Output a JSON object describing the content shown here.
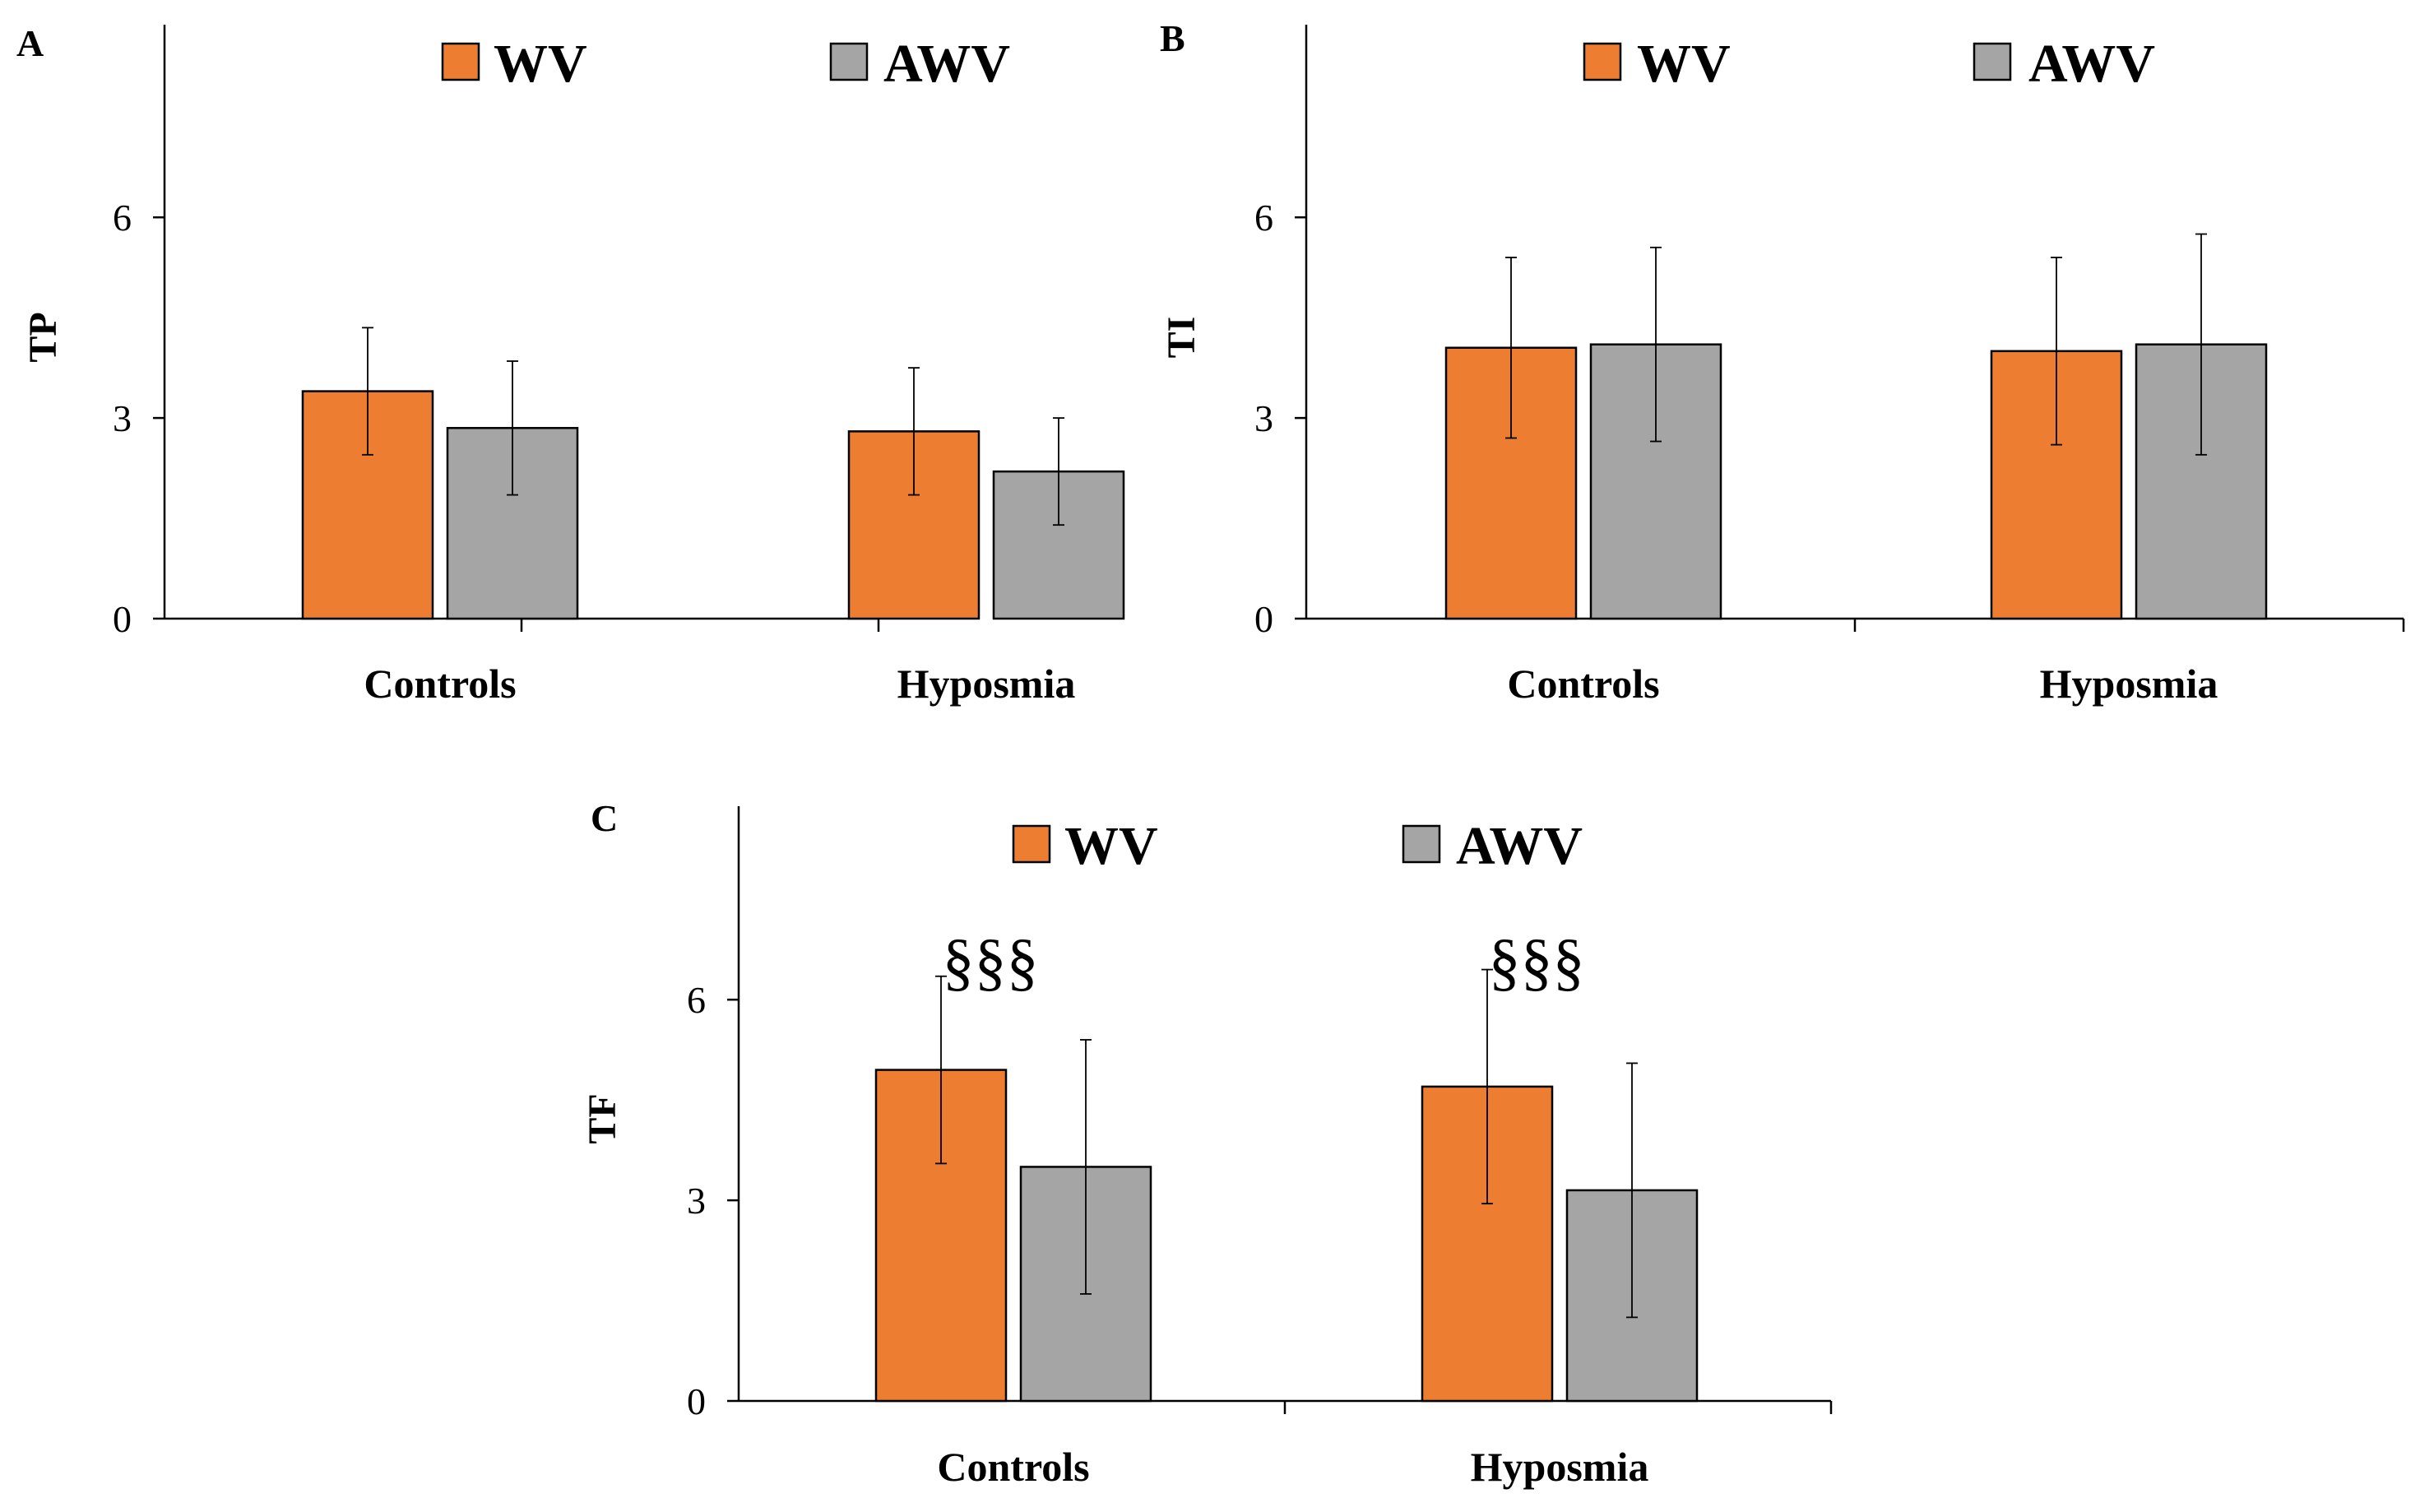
{
  "chart_data": [
    {
      "panel": "A",
      "type": "bar",
      "ylabel": "TP",
      "categories": [
        "Controls",
        "Hyposmia"
      ],
      "series": [
        {
          "name": "WV",
          "color": "#ED7D31",
          "values": [
            3.4,
            2.8
          ],
          "errors": [
            0.95,
            0.95
          ]
        },
        {
          "name": "AWV",
          "color": "#A5A5A5",
          "values": [
            2.85,
            2.2
          ],
          "errors": [
            1.0,
            0.8
          ]
        }
      ],
      "ylim": [
        0,
        9
      ],
      "yticks": [
        0,
        3,
        6
      ],
      "annotations": []
    },
    {
      "panel": "B",
      "type": "bar",
      "ylabel": "TI",
      "categories": [
        "Controls",
        "Hyposmia"
      ],
      "series": [
        {
          "name": "WV",
          "color": "#ED7D31",
          "values": [
            4.05,
            4.0
          ],
          "errors": [
            1.35,
            1.4
          ]
        },
        {
          "name": "AWV",
          "color": "#A5A5A5",
          "values": [
            4.1,
            4.1
          ],
          "errors": [
            1.45,
            1.65
          ]
        }
      ],
      "ylim": [
        0,
        9
      ],
      "yticks": [
        0,
        3,
        6
      ],
      "annotations": []
    },
    {
      "panel": "C",
      "type": "bar",
      "ylabel": "TF",
      "categories": [
        "Controls",
        "Hyposmia"
      ],
      "series": [
        {
          "name": "WV",
          "color": "#ED7D31",
          "values": [
            4.95,
            4.7
          ],
          "errors": [
            1.4,
            1.75
          ]
        },
        {
          "name": "AWV",
          "color": "#A5A5A5",
          "values": [
            3.5,
            3.15
          ],
          "errors": [
            1.9,
            1.9
          ]
        }
      ],
      "ylim": [
        0,
        9
      ],
      "yticks": [
        0,
        3,
        6
      ],
      "annotations": [
        {
          "text": "§§§",
          "category": 0
        },
        {
          "text": "§§§",
          "category": 1
        }
      ]
    }
  ]
}
